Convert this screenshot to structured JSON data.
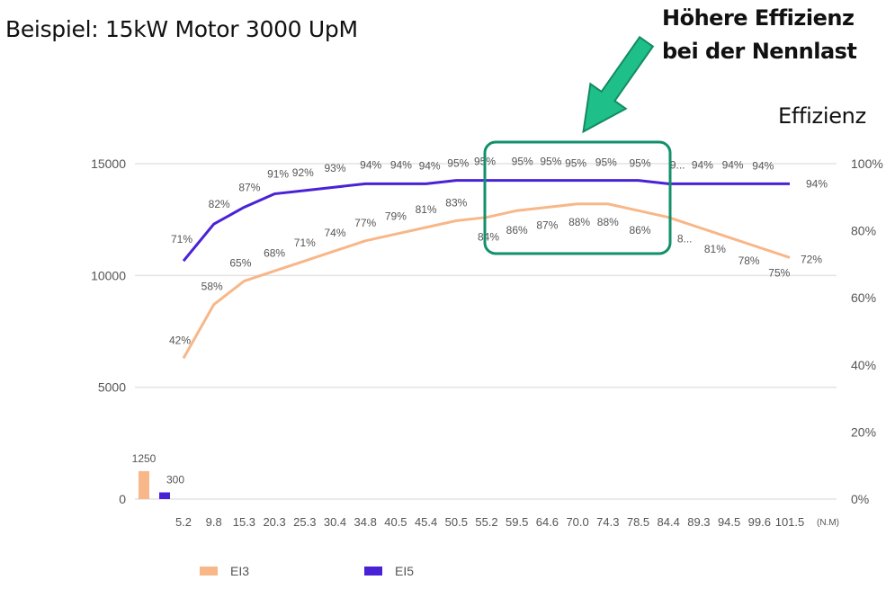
{
  "header": {
    "title": "Beispiel: 15kW Motor 3000 UpM",
    "callout_line1": "Höhere Effizienz",
    "callout_line2": "bei der Nennlast",
    "right_axis_title": "Effizienz"
  },
  "colors": {
    "ei3": "#f7b788",
    "ei5": "#4a22d6",
    "highlight": "#12906b",
    "grid": "#e3e3e3",
    "tick_text": "#555555"
  },
  "legend": {
    "items": [
      {
        "label": "EI3",
        "color": "#f7b788"
      },
      {
        "label": "EI5",
        "color": "#4a22d6"
      }
    ]
  },
  "chart_data": {
    "type": "line",
    "title": "Beispiel: 15kW Motor 3000 UpM",
    "xlabel": "(N.M)",
    "ylabel_left": "",
    "ylabel_right": "Effizienz",
    "categories": [
      "5.2",
      "9.8",
      "15.3",
      "20.3",
      "25.3",
      "30.4",
      "34.8",
      "40.5",
      "45.4",
      "50.5",
      "55.2",
      "59.5",
      "64.6",
      "70.0",
      "74.3",
      "78.5",
      "84.4",
      "89.3",
      "94.5",
      "99.6",
      "101.5"
    ],
    "left_axis": {
      "ticks": [
        0,
        5000,
        10000,
        15000
      ],
      "range": [
        0,
        15000
      ]
    },
    "right_axis": {
      "ticks": [
        "0%",
        "20%",
        "40%",
        "60%",
        "80%",
        "100%"
      ],
      "range": [
        0,
        100
      ]
    },
    "grid": true,
    "legend_position": "bottom",
    "series": [
      {
        "name": "EI3",
        "axis": "right",
        "values": [
          42,
          58,
          65,
          68,
          71,
          74,
          77,
          79,
          81,
          83,
          84,
          86,
          87,
          88,
          88,
          86,
          84,
          81,
          78,
          75,
          72
        ],
        "labels": [
          "42%",
          "58%",
          "65%",
          "68%",
          "71%",
          "74%",
          "77%",
          "79%",
          "81%",
          "83%",
          "84%",
          "86%",
          "87%",
          "88%",
          "88%",
          "86%",
          "8...",
          "81%",
          "78%",
          "75%",
          "72%"
        ]
      },
      {
        "name": "EI5",
        "axis": "right",
        "values": [
          71,
          82,
          87,
          91,
          92,
          93,
          94,
          94,
          94,
          95,
          95,
          95,
          95,
          95,
          95,
          95,
          94,
          94,
          94,
          94,
          94
        ],
        "labels": [
          "71%",
          "82%",
          "87%",
          "91%",
          "92%",
          "93%",
          "94%",
          "94%",
          "94%",
          "95%",
          "95%",
          "95%",
          "95%",
          "95%",
          "95%",
          "95%",
          "9...",
          "94%",
          "94%",
          "94%",
          "94%"
        ]
      }
    ],
    "bars": [
      {
        "name": "EI3",
        "value": 1250,
        "label": "1250"
      },
      {
        "name": "EI5",
        "value": 300,
        "label": "300"
      }
    ],
    "annotations": [
      {
        "type": "rounded-box",
        "covers_categories": [
          "55.2",
          "84.4"
        ],
        "text": "Höhere Effizienz bei der Nennlast"
      }
    ]
  }
}
